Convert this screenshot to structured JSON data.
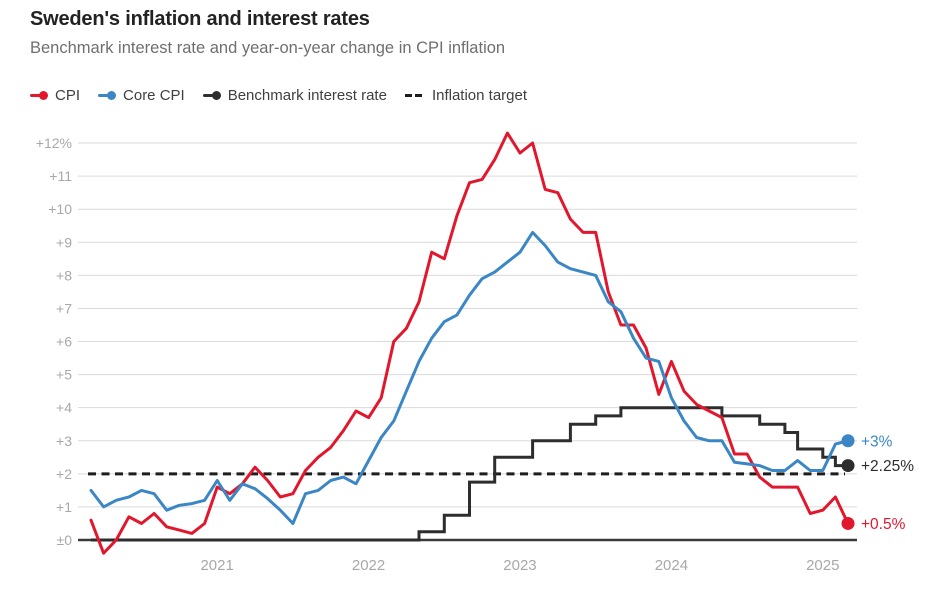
{
  "chart_data": {
    "type": "line",
    "title": "Sweden's inflation and interest rates",
    "subtitle": "Benchmark interest rate and year-on-year change in CPI inflation",
    "x_start": "2020-03",
    "x_end": "2025-03",
    "x_frequency": "monthly",
    "x_tick_labels": [
      "2021",
      "2022",
      "2023",
      "2024",
      "2025"
    ],
    "x_tick_month_index": [
      10,
      22,
      34,
      46,
      58
    ],
    "y_tick_labels": [
      "+12%",
      "+11",
      "+10",
      "+9",
      "+8",
      "+7",
      "+6",
      "+5",
      "+4",
      "+3",
      "+2",
      "+1",
      "±0"
    ],
    "y_tick_values": [
      12,
      11,
      10,
      9,
      8,
      7,
      6,
      5,
      4,
      3,
      2,
      1,
      0
    ],
    "ylim": [
      -0.7,
      12.6
    ],
    "grid": true,
    "legend_position": "top",
    "colors": {
      "cpi": "#e1182d",
      "core_cpi": "#3b86c4",
      "benchmark": "#2d2d2d",
      "target": "#1d1d1d",
      "gridline": "#dadada",
      "axis_line": "#3a3a3a",
      "tick_text": "#a8a8a8"
    },
    "series": [
      {
        "name": "CPI",
        "color": "#e1182d",
        "style": "line",
        "end_label": "+0.5%",
        "values": [
          0.6,
          -0.4,
          0.0,
          0.7,
          0.5,
          0.8,
          0.4,
          0.3,
          0.2,
          0.5,
          1.6,
          1.4,
          1.7,
          2.2,
          1.8,
          1.3,
          1.4,
          2.1,
          2.5,
          2.8,
          3.3,
          3.9,
          3.7,
          4.3,
          6.0,
          6.4,
          7.2,
          8.7,
          8.5,
          9.8,
          10.8,
          10.9,
          11.5,
          12.3,
          11.7,
          12.0,
          10.6,
          10.5,
          9.7,
          9.3,
          9.3,
          7.5,
          6.5,
          6.5,
          5.8,
          4.4,
          5.4,
          4.5,
          4.1,
          3.9,
          3.7,
          2.6,
          2.6,
          1.9,
          1.6,
          1.6,
          1.6,
          0.8,
          0.9,
          1.3,
          0.5
        ]
      },
      {
        "name": "Core CPI",
        "color": "#3b86c4",
        "style": "line",
        "end_label": "+3%",
        "values": [
          1.5,
          1.0,
          1.2,
          1.3,
          1.5,
          1.4,
          0.9,
          1.05,
          1.1,
          1.2,
          1.8,
          1.2,
          1.7,
          1.55,
          1.25,
          0.9,
          0.5,
          1.4,
          1.5,
          1.8,
          1.9,
          1.7,
          2.4,
          3.1,
          3.6,
          4.5,
          5.4,
          6.1,
          6.6,
          6.8,
          7.4,
          7.9,
          8.1,
          8.4,
          8.7,
          9.3,
          8.9,
          8.4,
          8.2,
          8.1,
          8.0,
          7.2,
          6.9,
          6.1,
          5.5,
          5.4,
          4.3,
          3.6,
          3.1,
          3.0,
          3.0,
          2.35,
          2.3,
          2.25,
          2.1,
          2.1,
          2.4,
          2.1,
          2.1,
          2.9,
          3.0
        ]
      },
      {
        "name": "Benchmark interest rate",
        "color": "#2d2d2d",
        "style": "step",
        "end_label": "+2.25%",
        "values": [
          0,
          0,
          0,
          0,
          0,
          0,
          0,
          0,
          0,
          0,
          0,
          0,
          0,
          0,
          0,
          0,
          0,
          0,
          0,
          0,
          0,
          0,
          0,
          0,
          0,
          0,
          0.25,
          0.25,
          0.75,
          0.75,
          1.75,
          1.75,
          2.5,
          2.5,
          2.5,
          3.0,
          3.0,
          3.0,
          3.5,
          3.5,
          3.75,
          3.75,
          4.0,
          4.0,
          4.0,
          4.0,
          4.0,
          4.0,
          4.0,
          4.0,
          3.75,
          3.75,
          3.75,
          3.5,
          3.5,
          3.25,
          2.75,
          2.75,
          2.5,
          2.25,
          2.25
        ]
      },
      {
        "name": "Inflation target",
        "color": "#1d1d1d",
        "style": "dashed-constant",
        "constant_value": 2
      }
    ]
  }
}
